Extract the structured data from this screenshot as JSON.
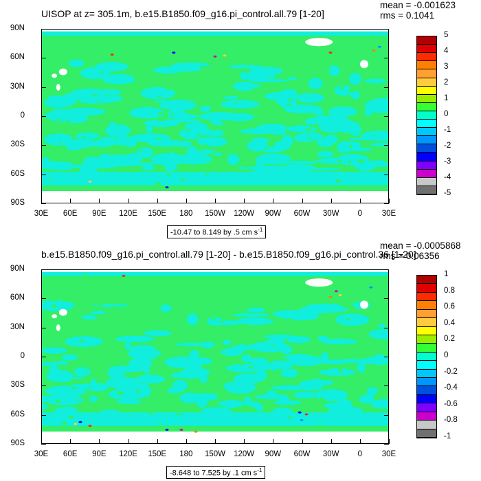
{
  "chart_data": [
    {
      "type": "heatmap",
      "title": "UISOP at z= 305.1m, b.e15.B1850.f09_g16.pi_control.all.79 [1-20]",
      "stats": {
        "mean": "mean = -0.001623",
        "rms": "rms = 0.1041"
      },
      "x_tick_labels": [
        "30E",
        "60E",
        "90E",
        "120E",
        "150E",
        "180",
        "150W",
        "120W",
        "90W",
        "60W",
        "30W",
        "0",
        "30E"
      ],
      "y_tick_labels": [
        "90N",
        "60N",
        "30N",
        "0",
        "30S",
        "60S",
        "90S"
      ],
      "xlim": [
        30,
        390
      ],
      "ylim": [
        -90,
        90
      ],
      "range_text": "-10.47 to 8.149 by .5 cm s",
      "range_unit_exp": "-1",
      "colorbar": {
        "labels": [
          "5",
          "4",
          "3",
          "2",
          "1",
          "0",
          "-1",
          "-2",
          "-3",
          "-4",
          "-5"
        ],
        "colors": [
          "#b00000",
          "#e00000",
          "#ff2a00",
          "#ff7f00",
          "#ffa030",
          "#ffcc40",
          "#ffff00",
          "#99ee00",
          "#33ff33",
          "#00ffcc",
          "#00ffff",
          "#00c8ff",
          "#0096ff",
          "#0050e0",
          "#0000ff",
          "#8000ff",
          "#cc00cc",
          "#c8c8c8",
          "#707070"
        ]
      },
      "dominant_levels": {
        "positive_small": "#33ee66",
        "negative_small": "#11eedd"
      }
    },
    {
      "type": "heatmap",
      "title": "b.e15.B1850.f09_g16.pi_control.all.79 [1-20] - b.e15.B1850.f09_g16.pi_control.36 [1-20]",
      "stats": {
        "mean": "mean = -0.0005868",
        "rms": "rms = 0.06356"
      },
      "x_tick_labels": [
        "30E",
        "60E",
        "90E",
        "120E",
        "150E",
        "180",
        "150W",
        "120W",
        "90W",
        "60W",
        "30W",
        "0",
        "30E"
      ],
      "y_tick_labels": [
        "90N",
        "60N",
        "30N",
        "0",
        "30S",
        "60S",
        "90S"
      ],
      "xlim": [
        30,
        390
      ],
      "ylim": [
        -90,
        90
      ],
      "range_text": "-8.648 to 7.525 by .1 cm s",
      "range_unit_exp": "-1",
      "colorbar": {
        "labels": [
          "1",
          "0.8",
          "0.6",
          "0.4",
          "0.2",
          "0",
          "-0.2",
          "-0.4",
          "-0.6",
          "-0.8",
          "-1"
        ],
        "colors": [
          "#b00000",
          "#e00000",
          "#ff2a00",
          "#ff7f00",
          "#ffa030",
          "#ffcc40",
          "#ffff00",
          "#99ee00",
          "#33ff33",
          "#00ffcc",
          "#00ffff",
          "#00c8ff",
          "#0096ff",
          "#0050e0",
          "#0000ff",
          "#8000ff",
          "#cc00cc",
          "#c8c8c8",
          "#707070"
        ]
      },
      "dominant_levels": {
        "positive_small": "#33ee66",
        "negative_small": "#11eedd"
      }
    }
  ]
}
